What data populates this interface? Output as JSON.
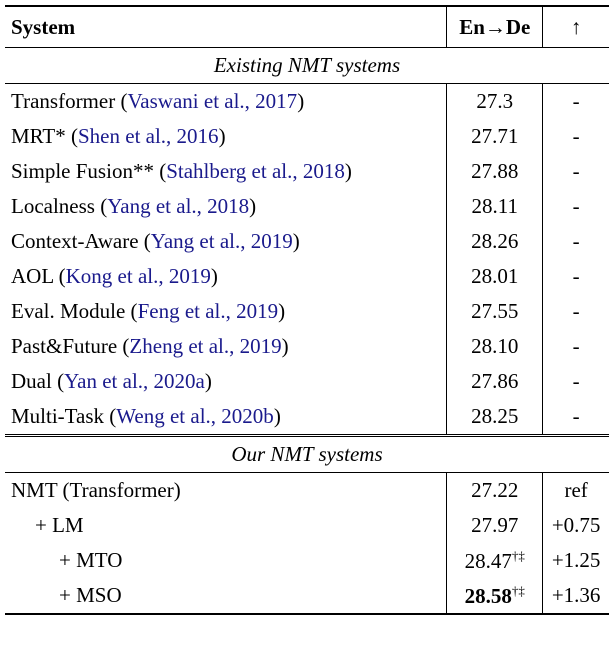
{
  "table": {
    "header": [
      "System",
      "En→De",
      "↑"
    ],
    "sections": [
      {
        "title": "Existing NMT systems",
        "rows": [
          {
            "system": "Transformer (",
            "cite": "Vaswani et al., 2017",
            "close": ")",
            "score": "27.3",
            "delta": "-"
          },
          {
            "system": "MRT* (",
            "cite": "Shen et al., 2016",
            "close": ")",
            "score": "27.71",
            "delta": "-"
          },
          {
            "system": "Simple Fusion** (",
            "cite": "Stahlberg et al., 2018",
            "close": ")",
            "score": "27.88",
            "delta": "-"
          },
          {
            "system": "Localness (",
            "cite": "Yang et al., 2018",
            "close": ")",
            "score": "28.11",
            "delta": "-"
          },
          {
            "system": "Context-Aware (",
            "cite": "Yang et al., 2019",
            "close": ")",
            "score": "28.26",
            "delta": "-"
          },
          {
            "system": "AOL (",
            "cite": "Kong et al., 2019",
            "close": ")",
            "score": "28.01",
            "delta": "-"
          },
          {
            "system": "Eval. Module (",
            "cite": "Feng et al., 2019",
            "close": ")",
            "score": "27.55",
            "delta": "-"
          },
          {
            "system": "Past&Future (",
            "cite": "Zheng et al., 2019",
            "close": ")",
            "score": "28.10",
            "delta": "-"
          },
          {
            "system": "Dual (",
            "cite": "Yan et al., 2020a",
            "close": ")",
            "score": "27.86",
            "delta": "-"
          },
          {
            "system": "Multi-Task (",
            "cite": "Weng et al., 2020b",
            "close": ")",
            "score": "28.25",
            "delta": "-"
          }
        ]
      },
      {
        "title": "Our NMT systems",
        "rows": [
          {
            "system": "NMT (Transformer)",
            "score": "27.22",
            "delta": "ref"
          },
          {
            "system": "+ LM",
            "indent": 1,
            "score": "27.97",
            "delta": "+0.75"
          },
          {
            "system": "+ MTO",
            "indent": 2,
            "score": "28.47",
            "sup": "†‡",
            "delta": "+1.25"
          },
          {
            "system": "+ MSO",
            "indent": 2,
            "score": "28.58",
            "sup": "†‡",
            "bold": true,
            "delta": "+1.36"
          }
        ]
      }
    ]
  }
}
